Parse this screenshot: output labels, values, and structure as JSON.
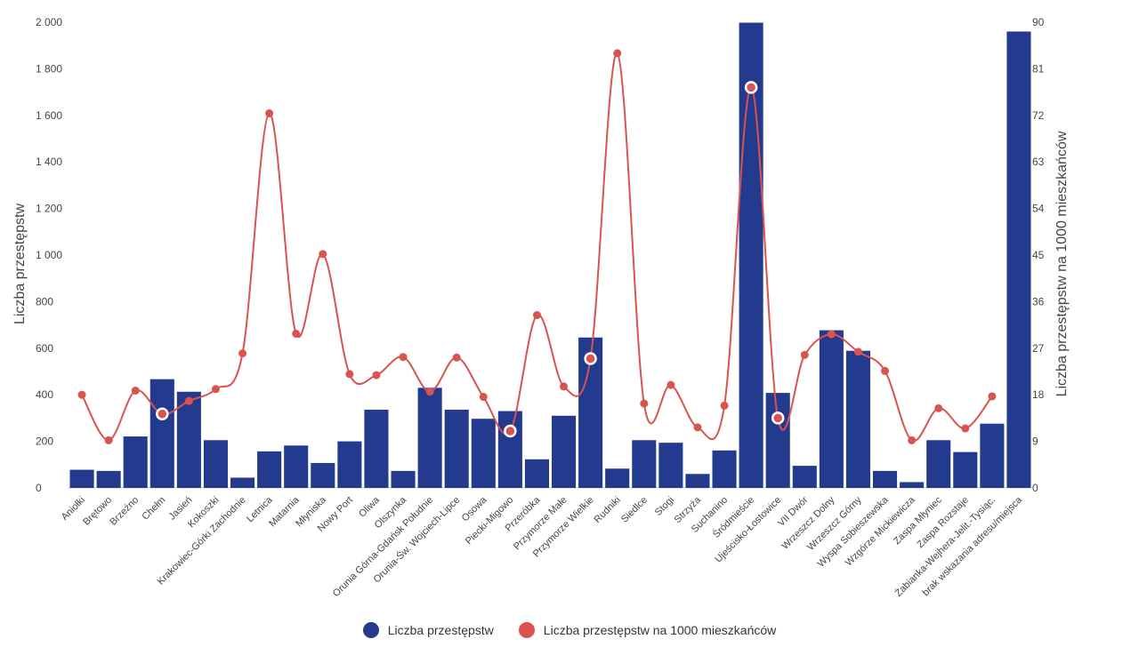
{
  "chart_data": {
    "type": "bar",
    "categories": [
      "Aniołki",
      "Brętowo",
      "Brzeźno",
      "Chełm",
      "Jasień",
      "Kokoszki",
      "Krakowiec-Górki Zachodnie",
      "Letnica",
      "Matarnia",
      "Młyniska",
      "Nowy Port",
      "Oliwa",
      "Olszynka",
      "Orunia Górna-Gdańsk Południe",
      "Orunia-Św. Wojciech-Lipce",
      "Osowa",
      "Piecki-Migowo",
      "Przeróbka",
      "Przymorze Małe",
      "Przymorze Wielkie",
      "Rudniki",
      "Siedlce",
      "Stogi",
      "Strzyża",
      "Suchanino",
      "Śródmieście",
      "Ujeścisko-Łostowice",
      "VII Dwór",
      "Wrzeszcz Dolny",
      "Wrzeszcz Górny",
      "Wyspa Sobieszewska",
      "Wzgórze Mickiewicza",
      "Zaspa Młyniec",
      "Zaspa Rozstaje",
      "Żabianka-Wejhera-Jelit.-Tysiąc.",
      "brak wskazania adresu/miejsca"
    ],
    "series": [
      {
        "name": "Liczba przestępstw",
        "axis": "left",
        "kind": "bar",
        "color": "#243a8f",
        "values": [
          78,
          73,
          221,
          467,
          413,
          205,
          44,
          157,
          182,
          107,
          200,
          336,
          73,
          430,
          336,
          297,
          330,
          123,
          310,
          646,
          83,
          205,
          194,
          60,
          161,
          1998,
          408,
          95,
          677,
          589,
          73,
          25,
          205,
          154,
          276,
          1960
        ]
      },
      {
        "name": "Liczba przestępstw na 1000 mieszkańców",
        "axis": "right",
        "kind": "line",
        "color": "#d9534f",
        "values": [
          18.0,
          9.2,
          18.8,
          14.3,
          16.8,
          19.1,
          26.0,
          72.4,
          29.8,
          45.2,
          22.0,
          21.8,
          25.3,
          18.6,
          25.2,
          17.6,
          11.0,
          33.4,
          19.6,
          25.0,
          84.0,
          16.3,
          19.9,
          11.7,
          15.9,
          77.4,
          13.5,
          25.7,
          29.7,
          26.3,
          22.6,
          9.2,
          15.4,
          11.5,
          17.7,
          null
        ]
      }
    ],
    "ylabel_left": "Liczba przestępstw",
    "ylabel_right": "Liczba przestępstw na 1000 mieszkańców",
    "ylim_left": [
      0,
      2000
    ],
    "ylim_right": [
      0,
      90
    ],
    "yticks_left": [
      "0",
      "200",
      "400",
      "600",
      "800",
      "1 000",
      "1 200",
      "1 400",
      "1 600",
      "1 800",
      "2 000"
    ],
    "yticks_right": [
      "0",
      "9",
      "18",
      "27",
      "36",
      "45",
      "54",
      "63",
      "72",
      "81",
      "90"
    ],
    "highlighted_points": [
      3,
      16,
      19,
      25,
      26
    ],
    "legend_position": "bottom",
    "grid": false
  }
}
